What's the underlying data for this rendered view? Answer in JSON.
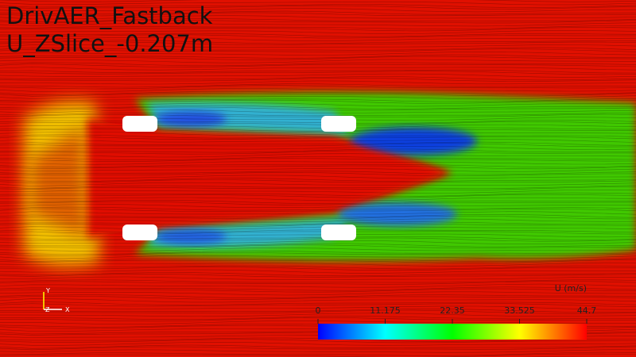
{
  "title": "DrivAER_Fastback",
  "subtitle": "U_ZSlice_-0.207m",
  "colorbar": {
    "label": "U (m/s)",
    "ticks": [
      0,
      11.175,
      22.35,
      33.525,
      44.7
    ]
  },
  "axes": {
    "y": "Y",
    "z": "Z",
    "x": "X"
  }
}
